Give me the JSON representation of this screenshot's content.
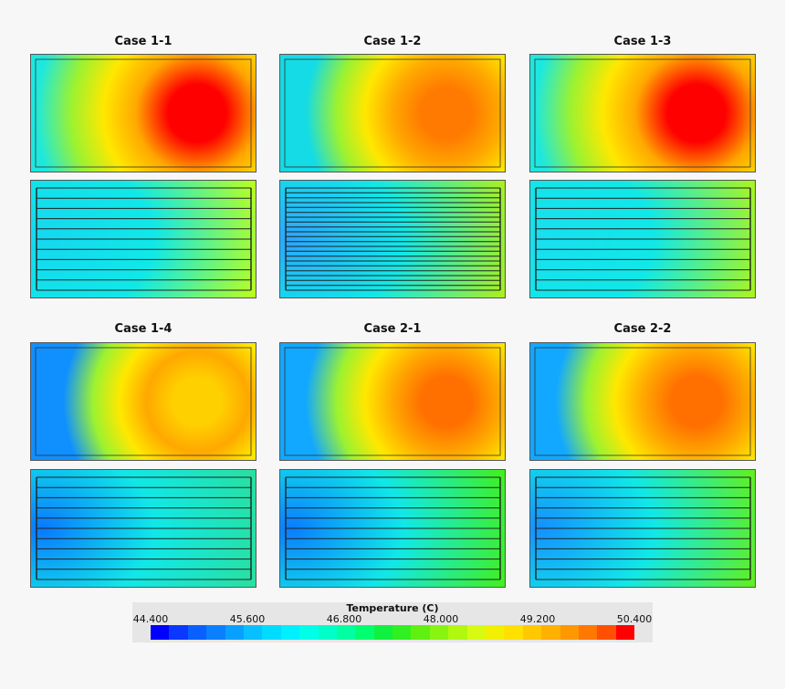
{
  "cases": [
    {
      "title": "Case 1-1",
      "top": {
        "bg": "#1ce8e0",
        "hot": "#ff0000",
        "hot_scale": 1.0
      },
      "bottom": {
        "left": "#15d8f0",
        "right": "#b8ff20",
        "lines": 11,
        "blue_edge": false
      }
    },
    {
      "title": "Case 1-2",
      "top": {
        "bg": "#14dbe6",
        "hot": "#ff7a00",
        "hot_scale": 0.85
      },
      "bottom": {
        "left": "#2aa6ff",
        "right": "#a8f020",
        "lines": 22,
        "blue_edge": false
      }
    },
    {
      "title": "Case 1-3",
      "top": {
        "bg": "#1ce8e0",
        "hot": "#ff0000",
        "hot_scale": 1.0
      },
      "bottom": {
        "left": "#18dff0",
        "right": "#a8f520",
        "lines": 11,
        "blue_edge": false
      }
    },
    {
      "title": "Case 1-4",
      "top": {
        "bg": "#1090ff",
        "hot": "#ffd000",
        "hot_scale": 0.8
      },
      "bottom": {
        "left": "#0a78ff",
        "right": "#28e0a0",
        "lines": 11,
        "blue_edge": true
      }
    },
    {
      "title": "Case 2-1",
      "top": {
        "bg": "#12a8ff",
        "hot": "#ff7000",
        "hot_scale": 0.85
      },
      "bottom": {
        "left": "#0a7cff",
        "right": "#40f020",
        "lines": 11,
        "blue_edge": true
      }
    },
    {
      "title": "Case 2-2",
      "top": {
        "bg": "#12a8ff",
        "hot": "#ff7000",
        "hot_scale": 0.85
      },
      "bottom": {
        "left": "#1490ff",
        "right": "#60f020",
        "lines": 11,
        "blue_edge": false
      }
    }
  ],
  "legend": {
    "title": "Temperature (C)",
    "ticks": [
      "44.400",
      "45.600",
      "46.800",
      "48.000",
      "49.200",
      "50.400"
    ],
    "colors": [
      "#0000ff",
      "#0a38ff",
      "#0a60ff",
      "#0a80ff",
      "#08a0ff",
      "#08c0ff",
      "#00dcff",
      "#00f0ff",
      "#00ffe8",
      "#00ffc8",
      "#00ffa0",
      "#00ff70",
      "#10f040",
      "#30f020",
      "#60f010",
      "#88f410",
      "#b0f810",
      "#d8fa10",
      "#f0f000",
      "#ffe000",
      "#ffc800",
      "#ffb000",
      "#ff9800",
      "#ff7800",
      "#ff5000",
      "#ff0000"
    ]
  }
}
